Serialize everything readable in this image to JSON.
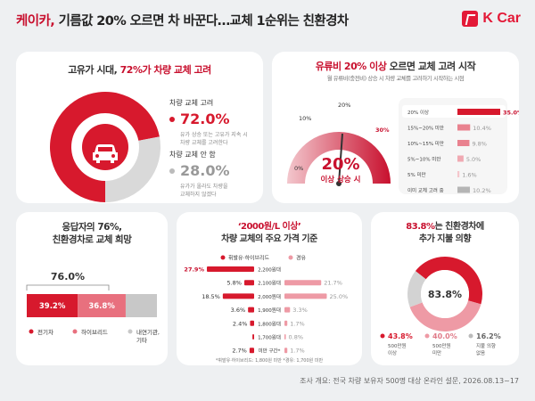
{
  "header": {
    "title_before": "케이카,",
    "title_after": "기름값 20% 오르면 차 바꾼다…교체 1순위는 친환경차",
    "logo_text": "K Car",
    "brand_color": "#e31937"
  },
  "footnote": "조사 개요: 전국 차량 보유자 500명 대상 온라인 설문, 2026.08.13~17",
  "panel1": {
    "title_before": "고유가 시대,",
    "title_accent": "72%가 차량 교체 고려",
    "icon": "car-icon",
    "legend": [
      {
        "label": "차량 교체 고려",
        "value": "72.0%",
        "desc1": "유가 상승 또는 고유가 지속 시",
        "desc2": "차량 교체를 고려한다"
      },
      {
        "label": "차량 교체 안 함",
        "value": "28.0%",
        "desc1": "유가가 올라도 차량을",
        "desc2": "교체하지 않겠다"
      }
    ]
  },
  "panel2": {
    "title_accent": "유류비 20% 이상",
    "title_after": "오르면 교체 고려 시작",
    "subtitle": "월 유류비(충전비) 상승 시 차량 교체를 고려하기 시작하는 시점",
    "gauge_ticks": [
      "0%",
      "10%",
      "20%",
      "30%"
    ],
    "gauge_value": "20%",
    "gauge_label": "이상 상승 시"
  },
  "panel3": {
    "title_line1": "응답자의 76%,",
    "title_line2": "친환경차로 교체 희망",
    "total": "76.0%",
    "legend": [
      "전기차",
      "하이브리드",
      "내연기관,",
      "기타"
    ]
  },
  "panel4": {
    "title_accent": "‘2000원/L 이상’",
    "title_line2": "차량 교체의 주요 가격 기준",
    "legend": [
      "휘발유·하이브리드",
      "경유"
    ],
    "note": "*휘발유·하이브리드: 1,800원 미만    *경유: 1,700원 미만"
  },
  "panel5": {
    "title_line1_accent": "83.8%",
    "title_line1_after": "는 친환경차에",
    "title_line2": "추가 지불 의향",
    "center": "83.8%",
    "legend": [
      {
        "value": "43.8%",
        "l1": "500만원",
        "l2": "이상"
      },
      {
        "value": "40.0%",
        "l1": "500만원",
        "l2": "미만"
      },
      {
        "value": "16.2%",
        "l1": "지불 의향",
        "l2": "없음"
      }
    ]
  },
  "chart_data": [
    {
      "type": "pie",
      "title": "고유가 시대, 72%가 차량 교체 고려",
      "categories": [
        "차량 교체 고려",
        "차량 교체 안 함"
      ],
      "values": [
        72.0,
        28.0
      ],
      "colors": [
        "#d7192d",
        "#d9d9d9"
      ]
    },
    {
      "type": "bar",
      "orientation": "horizontal",
      "title": "유류비 20% 이상 오르면 교체 고려 시작",
      "categories": [
        "20% 이상",
        "15%~20% 미만",
        "10%~15% 미만",
        "5%~10% 미만",
        "5% 미만",
        "이미 교체 고려 중"
      ],
      "values": [
        35.0,
        10.4,
        9.8,
        5.0,
        1.6,
        10.2
      ],
      "labels": [
        "35.0%",
        "10.4%",
        "9.8%",
        "5.0%",
        "1.6%",
        "10.2%"
      ],
      "colors": [
        "#d7192d",
        "#e9828f",
        "#e9828f",
        "#f0a9b2",
        "#f5c6cc",
        "#b5b5b5"
      ],
      "xlim": [
        0,
        35
      ]
    },
    {
      "type": "bar",
      "orientation": "horizontal",
      "stacked": true,
      "title": "응답자의 76%, 친환경차로 교체 희망",
      "categories": [
        "전기차",
        "하이브리드",
        "내연기관, 기타"
      ],
      "values": [
        39.2,
        36.8,
        24.0
      ],
      "labels": [
        "39.2%",
        "36.8%",
        ""
      ],
      "colors": [
        "#d7192d",
        "#e8707e",
        "#c8c8c8"
      ]
    },
    {
      "type": "bar",
      "orientation": "horizontal",
      "title": "‘2000원/L 이상’ 차량 교체의 주요 가격 기준",
      "categories": [
        "2,200원대",
        "2,100원대",
        "2,000원대",
        "1,900원대",
        "1,800원대",
        "1,700원대",
        "미만 구간*"
      ],
      "series": [
        {
          "name": "휘발유·하이브리드",
          "values": [
            27.9,
            5.8,
            18.5,
            3.6,
            2.4,
            1.0,
            2.7
          ],
          "labels": [
            "27.9%",
            "5.8%",
            "18.5%",
            "3.6%",
            "2.4%",
            "",
            "2.7%"
          ],
          "color": "#d7192d"
        },
        {
          "name": "경유",
          "values": [
            0,
            21.7,
            25.0,
            3.3,
            1.7,
            0.8,
            1.7
          ],
          "labels": [
            "",
            "21.7%",
            "25.0%",
            "3.3%",
            "1.7%",
            "0.8%",
            "1.7%"
          ],
          "color": "#ee9aa5"
        }
      ]
    },
    {
      "type": "pie",
      "title": "83.8%는 친환경차에 추가 지불 의향",
      "categories": [
        "500만원 이상",
        "500만원 미만",
        "지불 의향 없음"
      ],
      "values": [
        43.8,
        40.0,
        16.2
      ],
      "colors": [
        "#d7192d",
        "#ee9aa5",
        "#d3d3d3"
      ]
    }
  ]
}
